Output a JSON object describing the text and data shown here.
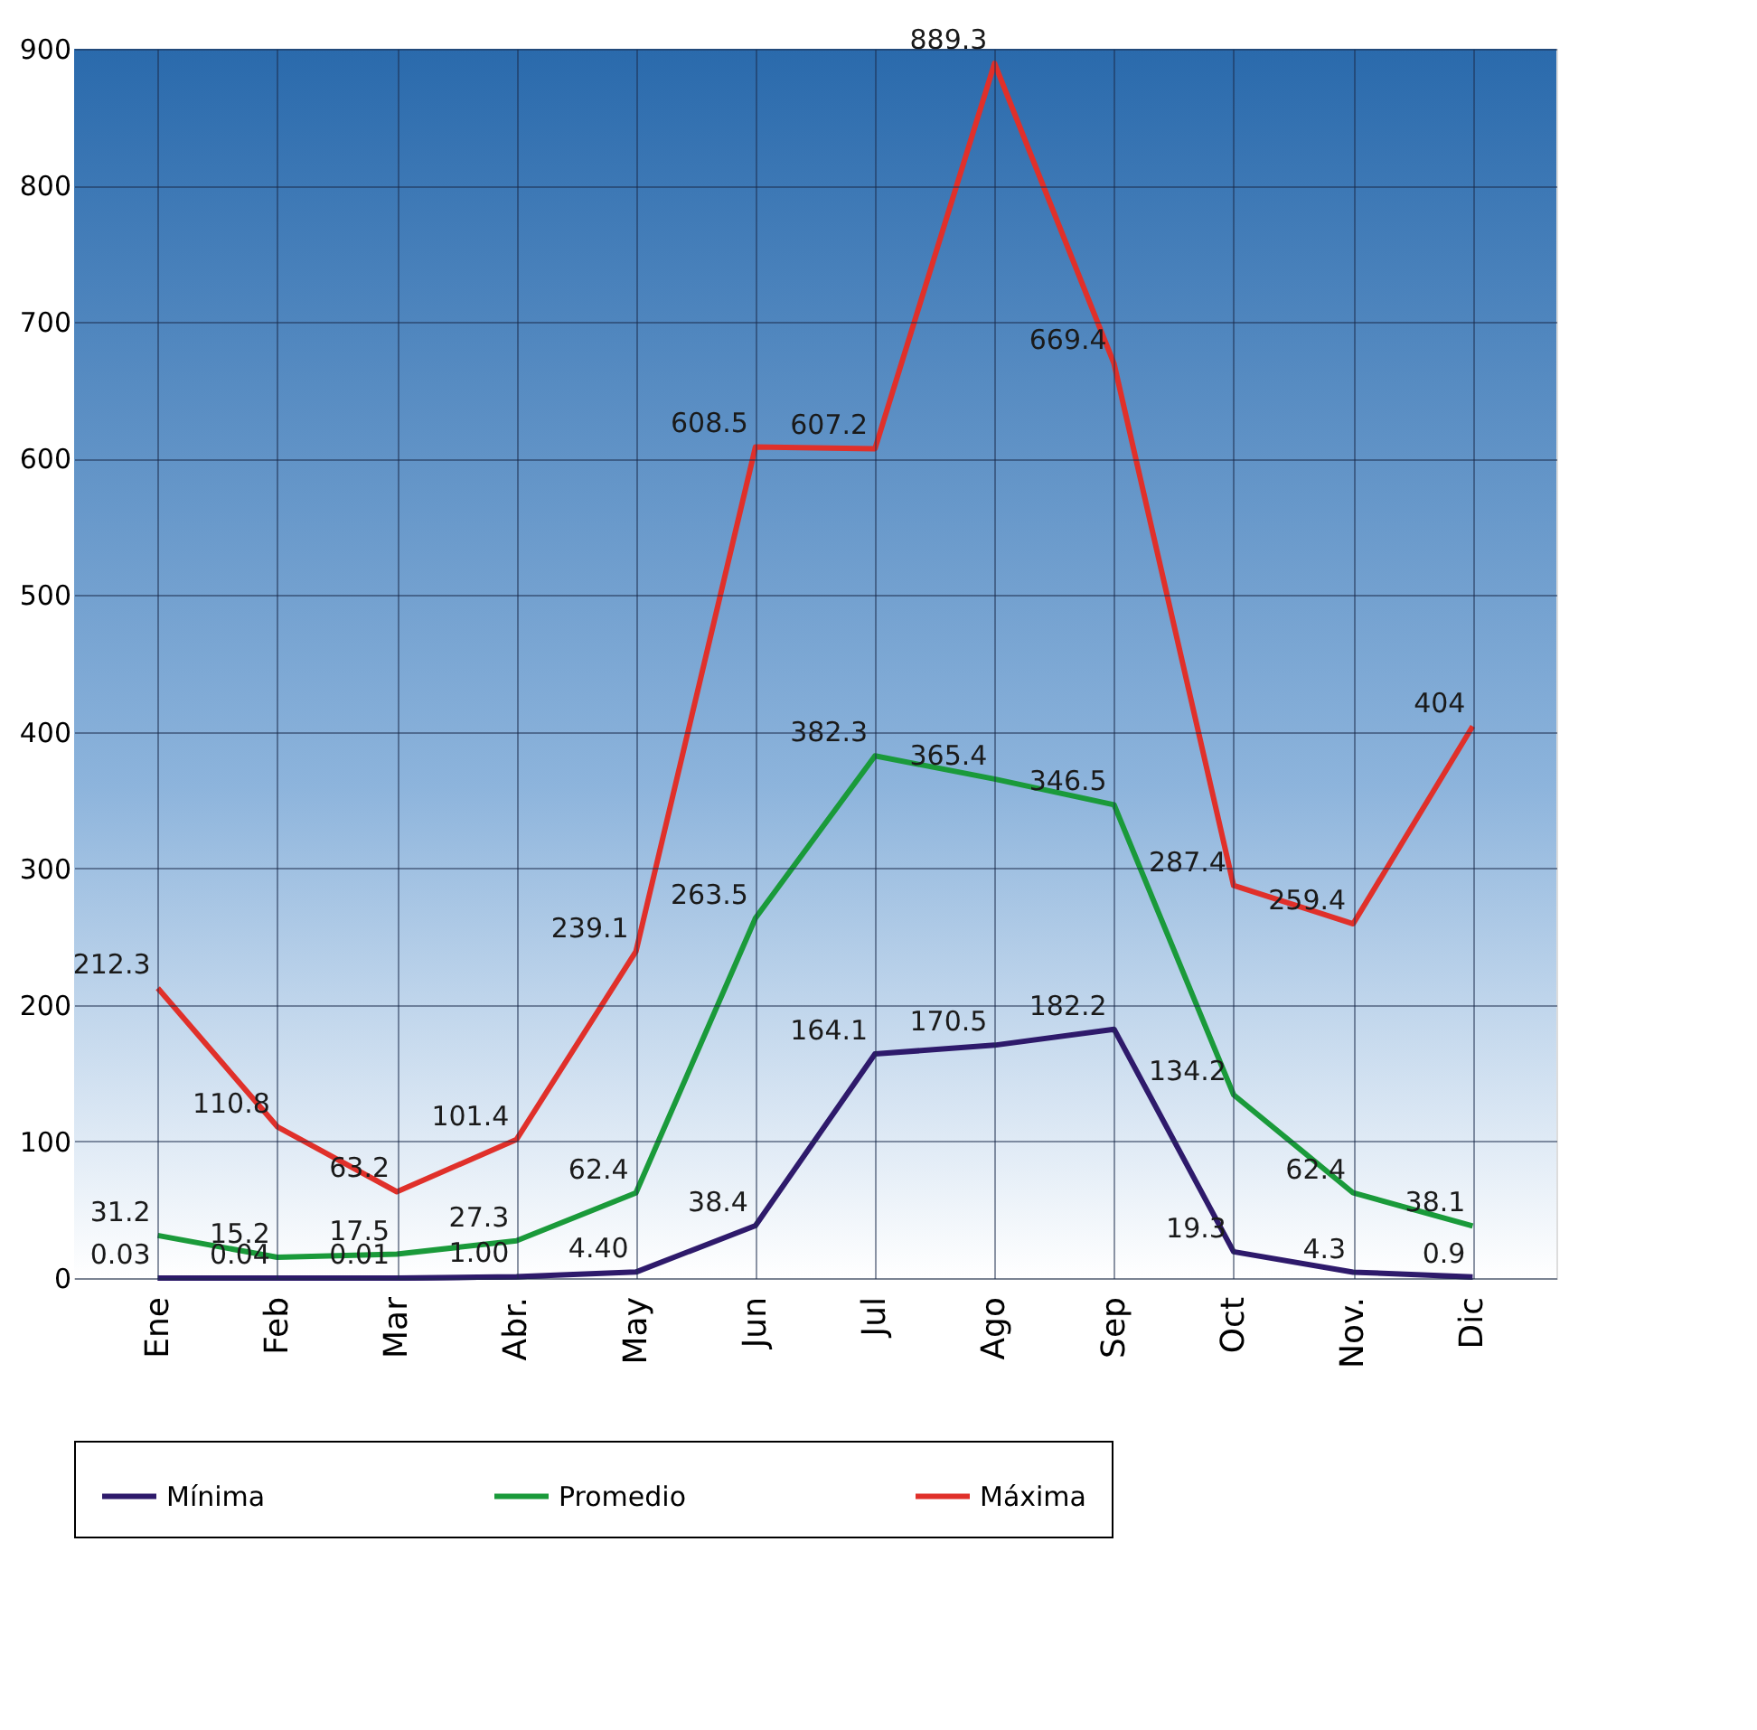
{
  "chart_data": {
    "type": "line",
    "categories": [
      "Ene",
      "Feb",
      "Mar",
      "Abr.",
      "May",
      "Jun",
      "Jul",
      "Ago",
      "Sep",
      "Oct",
      "Nov.",
      "Dic"
    ],
    "series": [
      {
        "name": "Mínima",
        "color": "#2e1a6b",
        "values": [
          0.03,
          0.04,
          0.01,
          1.0,
          4.4,
          38.4,
          164.1,
          170.5,
          182.2,
          19.3,
          4.3,
          0.9
        ],
        "value_labels": [
          "0.03",
          "0.04",
          "0.01",
          "1.00",
          "4.40",
          "38.4",
          "164.1",
          "170.5",
          "182.2",
          "19.3",
          "4.3",
          "0.9"
        ]
      },
      {
        "name": "Promedio",
        "color": "#1a9a3a",
        "values": [
          31.2,
          15.2,
          17.5,
          27.3,
          62.4,
          263.5,
          382.3,
          365.4,
          346.5,
          134.2,
          62.4,
          38.1
        ],
        "value_labels": [
          "31.2",
          "15.2",
          "17.5",
          "27.3",
          "62.4",
          "263.5",
          "382.3",
          "365.4",
          "346.5",
          "134.2",
          "62.4",
          "38.1"
        ]
      },
      {
        "name": "Máxima",
        "color": "#e0302a",
        "values": [
          212.3,
          110.8,
          63.2,
          101.4,
          239.1,
          608.5,
          607.2,
          889.3,
          669.4,
          287.4,
          259.4,
          404
        ],
        "value_labels": [
          "212.3",
          "110.8",
          "63.2",
          "101.4",
          "239.1",
          "608.5",
          "607.2",
          "889.3",
          "669.4",
          "287.4",
          "259.4",
          "404"
        ]
      }
    ],
    "ylim": [
      0,
      900
    ],
    "yticks": [
      0,
      100,
      200,
      300,
      400,
      500,
      600,
      700,
      800,
      900
    ],
    "grid": true,
    "legend": "bottom",
    "marker": "none",
    "line_style": "solid"
  }
}
